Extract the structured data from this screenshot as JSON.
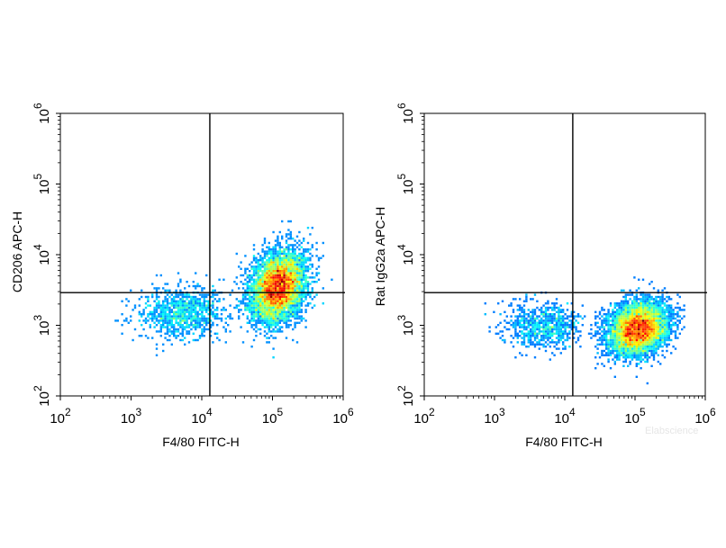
{
  "chart_data": [
    {
      "type": "scatter",
      "scale": "log",
      "xlabel": "F4/80 FITC-H",
      "ylabel": "CD206 APC-H",
      "xlim": [
        100,
        1000000
      ],
      "ylim": [
        100,
        1000000
      ],
      "x_ticks": [
        {
          "base": "10",
          "exp": "2"
        },
        {
          "base": "10",
          "exp": "3"
        },
        {
          "base": "10",
          "exp": "4"
        },
        {
          "base": "10",
          "exp": "5"
        },
        {
          "base": "10",
          "exp": "6"
        }
      ],
      "y_ticks": [
        {
          "base": "10",
          "exp": "2"
        },
        {
          "base": "10",
          "exp": "3"
        },
        {
          "base": "10",
          "exp": "4"
        },
        {
          "base": "10",
          "exp": "5"
        },
        {
          "base": "10",
          "exp": "6"
        }
      ],
      "quadrant_gate": {
        "x": 13000,
        "y": 2900
      },
      "populations": [
        {
          "center": [
            120000,
            3500
          ],
          "spread": [
            0.19,
            0.24
          ],
          "tilt": 0.55,
          "share": 0.86
        },
        {
          "center": [
            5000,
            1500
          ],
          "spread": [
            0.3,
            0.18
          ],
          "tilt": 0.0,
          "share": 0.14
        }
      ],
      "event_density": "rainbow colormap (blue = low, red = high)"
    },
    {
      "type": "scatter",
      "scale": "log",
      "xlabel": "F4/80 FITC-H",
      "ylabel": "Rat IgG2a APC-H",
      "xlim": [
        100,
        1000000
      ],
      "ylim": [
        100,
        1000000
      ],
      "x_ticks": [
        {
          "base": "10",
          "exp": "2"
        },
        {
          "base": "10",
          "exp": "3"
        },
        {
          "base": "10",
          "exp": "4"
        },
        {
          "base": "10",
          "exp": "5"
        },
        {
          "base": "10",
          "exp": "6"
        }
      ],
      "y_ticks": [
        {
          "base": "10",
          "exp": "2"
        },
        {
          "base": "10",
          "exp": "3"
        },
        {
          "base": "10",
          "exp": "4"
        },
        {
          "base": "10",
          "exp": "5"
        },
        {
          "base": "10",
          "exp": "6"
        }
      ],
      "quadrant_gate": {
        "x": 13000,
        "y": 2900
      },
      "populations": [
        {
          "center": [
            110000,
            900
          ],
          "spread": [
            0.21,
            0.18
          ],
          "tilt": 0.3,
          "share": 0.88
        },
        {
          "center": [
            5000,
            1000
          ],
          "spread": [
            0.28,
            0.16
          ],
          "tilt": 0.0,
          "share": 0.12
        }
      ],
      "event_density": "rainbow colormap (blue = low, red = high)"
    }
  ],
  "watermark": "Elabscience",
  "colors": {
    "axis": "#000000",
    "low": "#0000ff",
    "high": "#ff0000"
  }
}
